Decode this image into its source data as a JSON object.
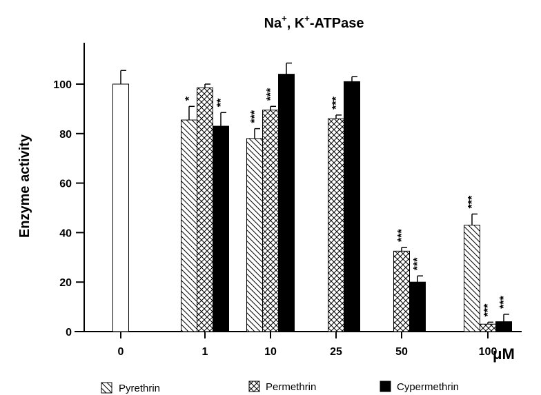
{
  "chart_data": {
    "type": "bar",
    "title_main": "Na",
    "title_sup1": "+",
    "title_mid": ", K",
    "title_sup2": "+",
    "title_end": "-ATPase",
    "ylabel": "Enzyme activity",
    "x_unit": "μM",
    "ylim": [
      0,
      115
    ],
    "yticks": [
      0,
      20,
      40,
      60,
      80,
      100
    ],
    "categories": [
      "0",
      "1",
      "10",
      "25",
      "50",
      "100"
    ],
    "legend_position": "bottom",
    "grid": false,
    "control": {
      "category": "0",
      "value": 100,
      "error": 5.5
    },
    "series": [
      {
        "name": "Pyrethrin",
        "pattern": "diagonal",
        "values": [
          null,
          85.5,
          78,
          null,
          null,
          43
        ],
        "errors": [
          null,
          5.5,
          4,
          null,
          null,
          4.5
        ],
        "stars": [
          null,
          "*",
          "***",
          null,
          null,
          "***"
        ]
      },
      {
        "name": "Permethrin",
        "pattern": "crosshatch",
        "values": [
          null,
          98.5,
          89.5,
          86,
          32.5,
          3
        ],
        "errors": [
          null,
          1.5,
          1.5,
          1.5,
          1.5,
          0.8
        ],
        "stars": [
          null,
          null,
          "***",
          "***",
          "***",
          "***"
        ]
      },
      {
        "name": "Cypermethrin",
        "pattern": "solid",
        "values": [
          null,
          83,
          null,
          null,
          20,
          4
        ],
        "errors": [
          null,
          5.5,
          null,
          null,
          2.5,
          3
        ],
        "stars": [
          null,
          "**",
          null,
          null,
          "***",
          "***"
        ]
      },
      {
        "name": "Cypermethrin",
        "pattern": "solid",
        "values": [
          null,
          null,
          104,
          101,
          null,
          null
        ],
        "errors": [
          null,
          null,
          4.5,
          2,
          null,
          null
        ],
        "stars": [
          null,
          null,
          null,
          null,
          null,
          null
        ]
      }
    ]
  }
}
